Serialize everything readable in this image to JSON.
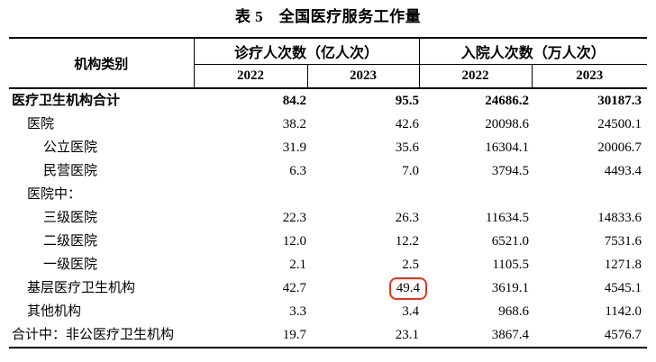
{
  "title": "表 5　全国医疗服务工作量",
  "table": {
    "label_header": "机构类别",
    "groups": [
      {
        "label": "诊疗人次数（亿人次）",
        "years": [
          "2022",
          "2023"
        ]
      },
      {
        "label": "入院人次数（万人次）",
        "years": [
          "2022",
          "2023"
        ]
      }
    ],
    "rows": [
      {
        "label": "医疗卫生机构合计",
        "values": [
          "84.2",
          "95.5",
          "24686.2",
          "30187.3"
        ]
      },
      {
        "label": "医院",
        "values": [
          "38.2",
          "42.6",
          "20098.6",
          "24500.1"
        ]
      },
      {
        "label": "公立医院",
        "values": [
          "31.9",
          "35.6",
          "16304.1",
          "20006.7"
        ]
      },
      {
        "label": "民营医院",
        "values": [
          "6.3",
          "7.0",
          "3794.5",
          "4493.4"
        ]
      },
      {
        "label": "医院中：",
        "values": [
          "",
          "",
          "",
          ""
        ]
      },
      {
        "label": "三级医院",
        "values": [
          "22.3",
          "26.3",
          "11634.5",
          "14833.6"
        ]
      },
      {
        "label": "二级医院",
        "values": [
          "12.0",
          "12.2",
          "6521.0",
          "7531.6"
        ]
      },
      {
        "label": "一级医院",
        "values": [
          "2.1",
          "2.5",
          "1105.5",
          "1271.8"
        ]
      },
      {
        "label": "基层医疗卫生机构",
        "values": [
          "42.7",
          "49.4",
          "3619.1",
          "4545.1"
        ]
      },
      {
        "label": "其他机构",
        "values": [
          "3.3",
          "3.4",
          "968.6",
          "1142.0"
        ]
      },
      {
        "label": "合计中：非公医疗卫生机构",
        "values": [
          "19.7",
          "23.1",
          "3867.4",
          "4576.7"
        ]
      }
    ],
    "highlight": {
      "row_label": "基层医疗卫生机构",
      "column": "诊疗人次数（亿人次） 2023",
      "value": "49.4",
      "shape": "red-rounded-rectangle",
      "color": "#e2361d"
    }
  }
}
